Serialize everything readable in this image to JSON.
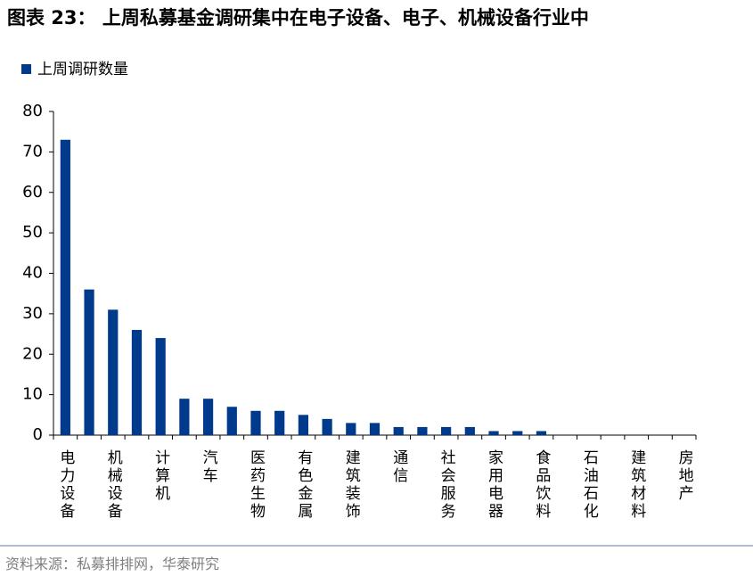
{
  "chart_data": {
    "type": "bar",
    "title": "图表 23： 上周私募基金调研集中在电子设备、电子、机械设备行业中",
    "series": [
      {
        "name": "上周调研数量",
        "color": "#003a8c",
        "values": [
          73,
          36,
          31,
          26,
          24,
          9,
          9,
          7,
          6,
          6,
          5,
          4,
          3,
          3,
          2,
          2,
          2,
          2,
          1,
          1,
          1,
          0,
          0,
          0,
          0,
          0,
          0
        ]
      }
    ],
    "categories": [
      "电力设备",
      null,
      "机械设备",
      null,
      "计算机",
      null,
      "汽车",
      null,
      "医药生物",
      null,
      "有色金属",
      null,
      "建筑装饰",
      null,
      "通信",
      null,
      "社会服务",
      null,
      "家用电器",
      null,
      "食品饮料",
      null,
      "石油石化",
      null,
      "建筑材料",
      null,
      "房地产"
    ],
    "ylim": [
      0,
      80
    ],
    "yticks": [
      0,
      10,
      20,
      30,
      40,
      50,
      60,
      70,
      80
    ],
    "grid": false,
    "legend": "top-left",
    "source": "资料来源：私募排排网，华泰研究"
  }
}
